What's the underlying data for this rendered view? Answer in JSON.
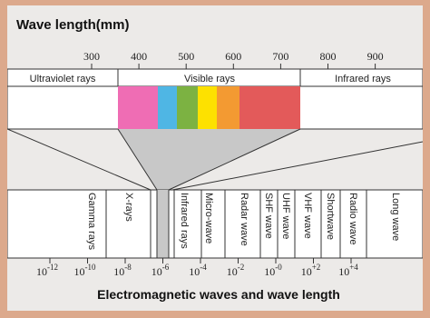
{
  "title": "Wave length(mm)",
  "caption": "Electromagnetic waves and wave length",
  "colors": {
    "background": "#eceae8",
    "border": "#dca98c",
    "funnel": "#c8c8c8",
    "spectrum": [
      "#ef6db4",
      "#4fb6e4",
      "#7cb242",
      "#fde100",
      "#f39a32",
      "#e35a5a",
      "#e35a5a"
    ]
  },
  "top_scale": {
    "ticks": [
      {
        "label": "300",
        "value": 300
      },
      {
        "label": "400",
        "value": 400
      },
      {
        "label": "500",
        "value": 500
      },
      {
        "label": "600",
        "value": 600
      },
      {
        "label": "700",
        "value": 700
      },
      {
        "label": "800",
        "value": 800
      },
      {
        "label": "900",
        "value": 900
      }
    ]
  },
  "bands": {
    "ultraviolet": "Ultraviolet rays",
    "visible": "Visible rays",
    "infrared": "Infrared rays"
  },
  "wave_types": [
    "Gamma rays",
    "X-rays",
    "Infrared rays",
    "Micro-wave",
    "Radar wave",
    "SHF wave",
    "UHF wave",
    "VHF wave",
    "Shortwave",
    "Radio wave",
    "Long wave"
  ],
  "bottom_scale": {
    "ticks": [
      {
        "base": "10",
        "exp": "-12"
      },
      {
        "base": "10",
        "exp": "-10"
      },
      {
        "base": "10",
        "exp": "-8"
      },
      {
        "base": "10",
        "exp": "-6"
      },
      {
        "base": "10",
        "exp": "-4"
      },
      {
        "base": "10",
        "exp": "-2"
      },
      {
        "base": "10",
        "exp": "-0"
      },
      {
        "base": "10",
        "exp": "+2"
      },
      {
        "base": "10",
        "exp": "+4"
      }
    ]
  }
}
